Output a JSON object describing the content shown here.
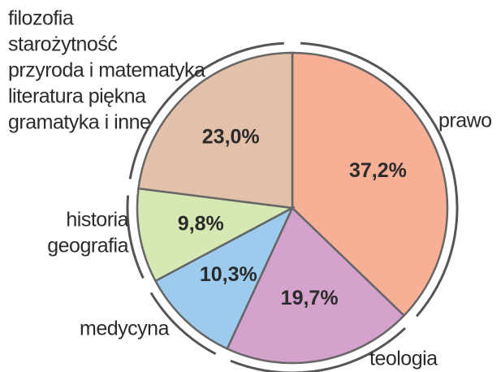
{
  "chart_data": {
    "type": "pie",
    "categories": [
      [
        "prawo"
      ],
      [
        "teologia"
      ],
      [
        "medycyna"
      ],
      [
        "historia",
        "geografia"
      ],
      [
        "filozofia",
        "starożytność",
        "przyroda i matematyka",
        "literatura piękna",
        "gramatyka i inne"
      ]
    ],
    "values": [
      37.2,
      19.7,
      10.3,
      9.8,
      23.0
    ],
    "value_labels": [
      "37,2%",
      "19,7%",
      "10,3%",
      "9,8%",
      "23,0%"
    ],
    "colors": [
      "#f7b096",
      "#d4a2cc",
      "#9ccbed",
      "#d6e8b4",
      "#e3c0aa"
    ]
  }
}
